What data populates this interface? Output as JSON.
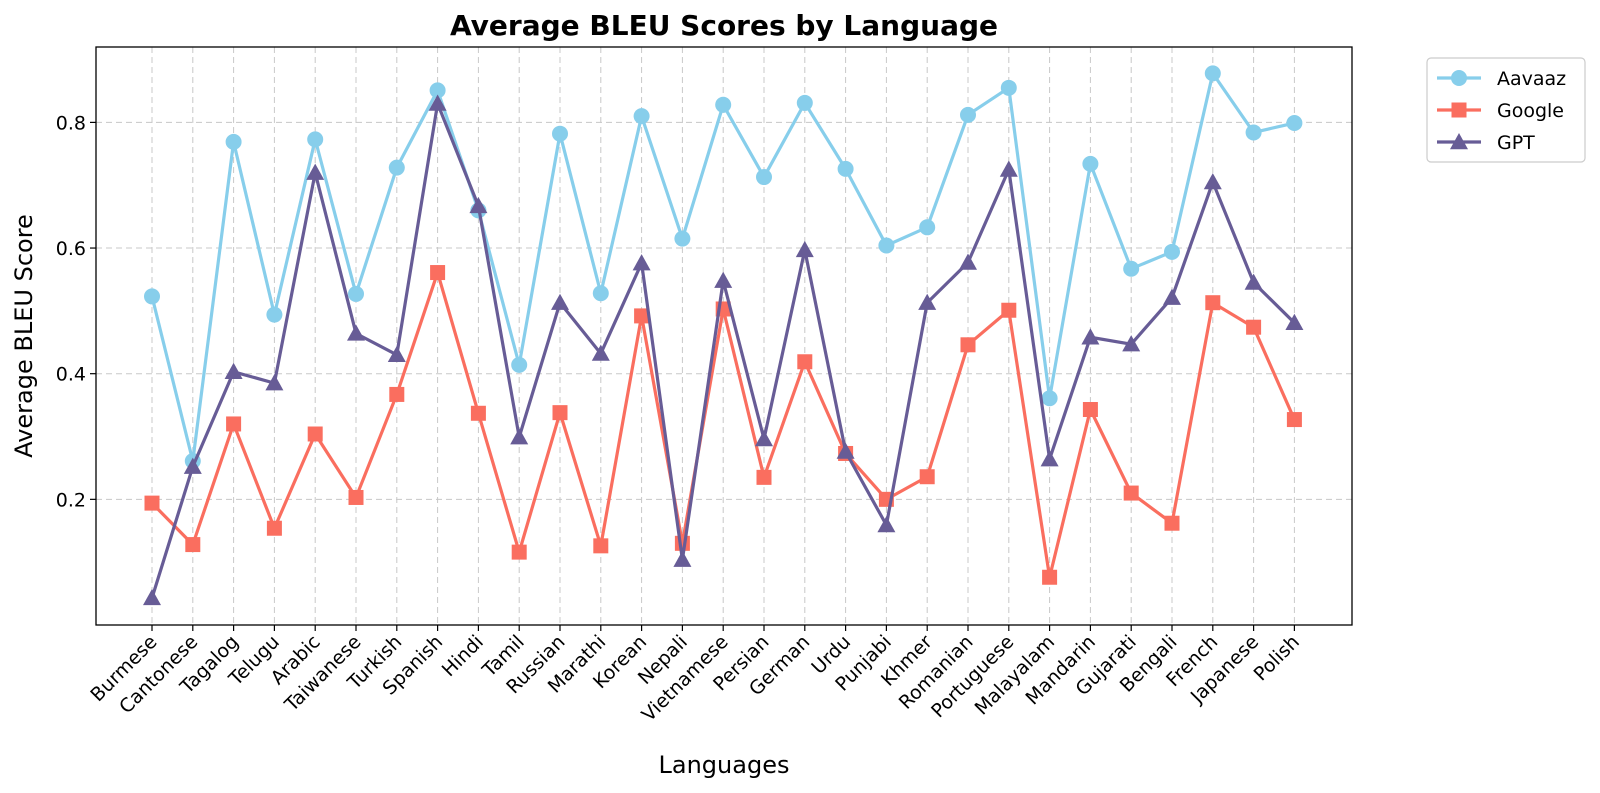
{
  "chart_data": {
    "type": "line",
    "title": "Average BLEU Scores by Language",
    "xlabel": "Languages",
    "ylabel": "Average BLEU Score",
    "ylim": [
      0.0,
      0.92
    ],
    "yticks": [
      "0.2",
      "0.4",
      "0.6",
      "0.8"
    ],
    "grid": true,
    "legend_position": "outside-top-right",
    "categories": [
      "Burmese",
      "Cantonese",
      "Tagalog",
      "Telugu",
      "Arabic",
      "Taiwanese",
      "Turkish",
      "Spanish",
      "Hindi",
      "Tamil",
      "Russian",
      "Marathi",
      "Korean",
      "Nepali",
      "Vietnamese",
      "Persian",
      "German",
      "Urdu",
      "Punjabi",
      "Khmer",
      "Romanian",
      "Portuguese",
      "Malayalam",
      "Mandarin",
      "Gujarati",
      "Bengali",
      "French",
      "Japanese",
      "Polish"
    ],
    "series": [
      {
        "name": "Aavaaz",
        "color": "#87ceeb",
        "marker": "circle",
        "values": [
          0.523,
          0.261,
          0.769,
          0.494,
          0.773,
          0.527,
          0.728,
          0.851,
          0.66,
          0.414,
          0.782,
          0.528,
          0.81,
          0.615,
          0.828,
          0.713,
          0.831,
          0.726,
          0.604,
          0.633,
          0.812,
          0.855,
          0.361,
          0.734,
          0.567,
          0.594,
          0.878,
          0.784,
          0.799
        ]
      },
      {
        "name": "Google",
        "color": "#fa6e5f",
        "marker": "square",
        "values": [
          0.194,
          0.128,
          0.32,
          0.154,
          0.304,
          0.203,
          0.367,
          0.561,
          0.337,
          0.116,
          0.338,
          0.126,
          0.492,
          0.13,
          0.503,
          0.235,
          0.419,
          0.273,
          0.2,
          0.236,
          0.446,
          0.501,
          0.076,
          0.343,
          0.21,
          0.162,
          0.513,
          0.474,
          0.327
        ]
      },
      {
        "name": "GPT",
        "color": "#675c96",
        "marker": "triangle",
        "values": [
          0.043,
          0.252,
          0.403,
          0.385,
          0.72,
          0.464,
          0.43,
          0.83,
          0.667,
          0.299,
          0.513,
          0.432,
          0.576,
          0.104,
          0.548,
          0.296,
          0.597,
          0.276,
          0.159,
          0.513,
          0.577,
          0.725,
          0.264,
          0.458,
          0.447,
          0.521,
          0.705,
          0.545,
          0.481
        ]
      }
    ]
  }
}
